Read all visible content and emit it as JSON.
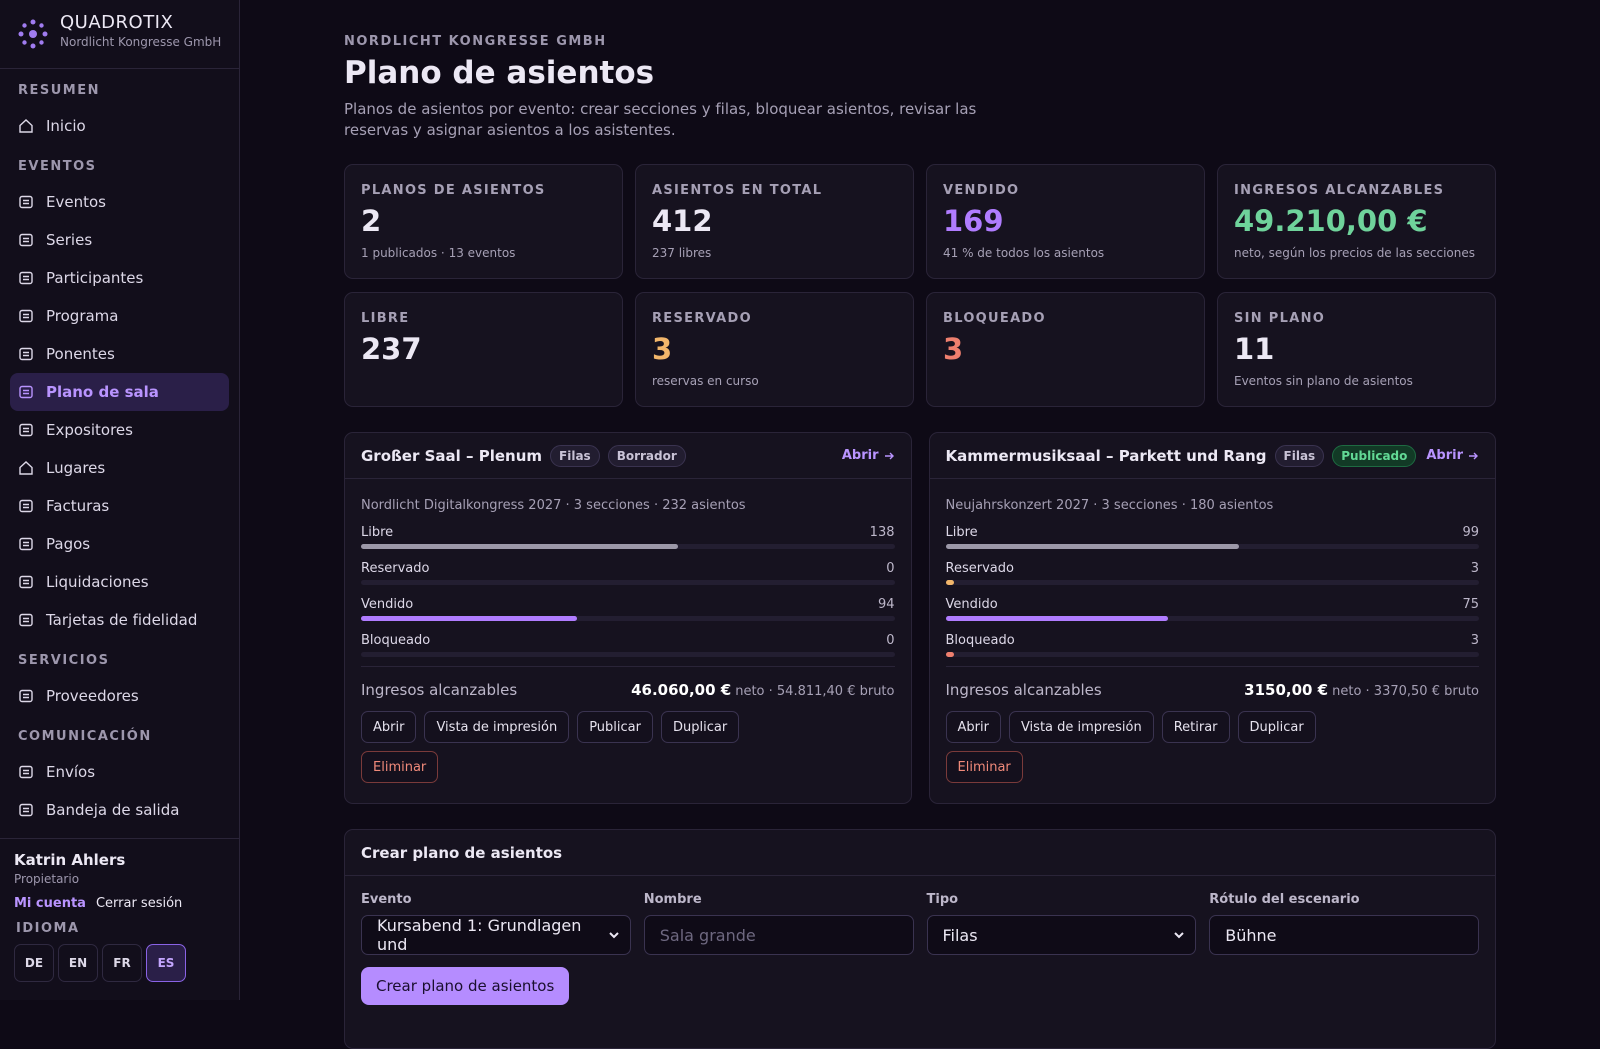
{
  "sidebar": {
    "brand": "QUADROTIX",
    "org": "Nordlicht Kongresse GmbH",
    "groups": [
      {
        "title": "RESUMEN",
        "items": [
          "Inicio"
        ]
      },
      {
        "title": "EVENTOS",
        "items": [
          "Eventos",
          "Series",
          "Participantes",
          "Programa",
          "Ponentes",
          "Plano de sala",
          "Expositores",
          "Lugares",
          "Facturas",
          "Pagos",
          "Liquidaciones",
          "Tarjetas de fidelidad"
        ]
      },
      {
        "title": "SERVICIOS",
        "items": [
          "Proveedores"
        ]
      },
      {
        "title": "COMUNICACIÓN",
        "items": [
          "Envíos",
          "Bandeja de salida"
        ]
      }
    ],
    "user": {
      "name": "Katrin Ahlers",
      "role": "Propietario",
      "account": "Mi cuenta",
      "logout": "Cerrar sesión"
    },
    "language": {
      "title": "IDIOMA",
      "options": [
        "DE",
        "EN",
        "FR",
        "ES"
      ]
    }
  },
  "header": {
    "org": "NORDLICHT KONGRESSE GMBH",
    "title": "Plano de asientos",
    "description": "Planos de asientos por evento: crear secciones y filas, bloquear asientos, revisar las reservas y asignar asientos a los asistentes."
  },
  "stats": [
    {
      "label": "PLANOS DE ASIENTOS",
      "value": "2",
      "note": "1 publicados · 13 eventos"
    },
    {
      "label": "ASIENTOS EN TOTAL",
      "value": "412",
      "note": "237 libres"
    },
    {
      "label": "VENDIDO",
      "value": "169",
      "note": "41 % de todos los asientos"
    },
    {
      "label": "INGRESOS ALCANZABLES",
      "value": "49.210,00 €",
      "note": "neto, según los precios de las secciones"
    },
    {
      "label": "LIBRE",
      "value": "237"
    },
    {
      "label": "RESERVADO",
      "value": "3",
      "note": "reservas en curso"
    },
    {
      "label": "BLOQUEADO",
      "value": "3"
    },
    {
      "label": "SIN PLANO",
      "value": "11",
      "note": "Eventos sin plano de asientos"
    }
  ],
  "plans": [
    {
      "name": "Großer Saal – Plenum",
      "type": "Filas",
      "status": "Borrador",
      "open": "Abrir",
      "meta": "Nordlicht Digitalkongress 2027 · 3 secciones · 232 asientos",
      "rows": [
        {
          "label": "Libre",
          "value": 138
        },
        {
          "label": "Reservado",
          "value": 0
        },
        {
          "label": "Vendido",
          "value": 94
        },
        {
          "label": "Bloqueado",
          "value": 0
        }
      ],
      "revenue_label": "Ingresos alcanzables",
      "revenue_net": "46.060,00 €",
      "revenue_rest": "neto · 54.811,40 € bruto",
      "actions": [
        "Abrir",
        "Vista de impresión",
        "Publicar",
        "Duplicar"
      ],
      "delete": "Eliminar"
    },
    {
      "name": "Kammermusiksaal – Parkett und Rang",
      "type": "Filas",
      "status": "Publicado",
      "open": "Abrir",
      "meta": "Neujahrskonzert 2027 · 3 secciones · 180 asientos",
      "rows": [
        {
          "label": "Libre",
          "value": 99
        },
        {
          "label": "Reservado",
          "value": 3
        },
        {
          "label": "Vendido",
          "value": 75
        },
        {
          "label": "Bloqueado",
          "value": 3
        }
      ],
      "revenue_label": "Ingresos alcanzables",
      "revenue_net": "3150,00 €",
      "revenue_rest": "neto · 3370,50 € bruto",
      "actions": [
        "Abrir",
        "Vista de impresión",
        "Retirar",
        "Duplicar"
      ],
      "delete": "Eliminar"
    }
  ],
  "create": {
    "title": "Crear plano de asientos",
    "fields": [
      {
        "label": "Evento",
        "value": "Kursabend 1: Grundlagen und"
      },
      {
        "label": "Nombre",
        "placeholder": "Sala grande"
      },
      {
        "label": "Tipo",
        "value": "Filas"
      },
      {
        "label": "Rótulo del escenario",
        "value": "Bühne"
      }
    ],
    "button": "Crear plano de asientos"
  }
}
